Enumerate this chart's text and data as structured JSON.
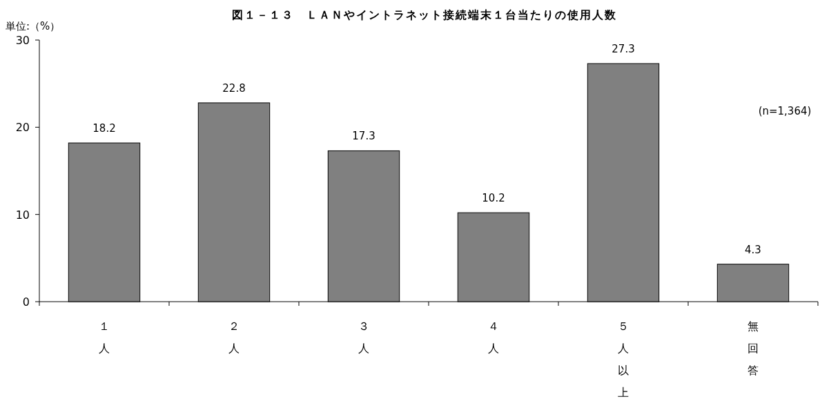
{
  "chart_data": {
    "type": "bar",
    "title": "図１－１３　ＬＡＮやイントラネット接続端末１台当たりの使用人数",
    "ylabel": "単位:（%）",
    "categories": [
      "１人",
      "２人",
      "３人",
      "４人",
      "５人以上",
      "無回答"
    ],
    "values": [
      18.2,
      22.8,
      17.3,
      10.2,
      27.3,
      4.3
    ],
    "color": "#808080",
    "ylim": [
      0,
      30
    ],
    "yticks": [
      0,
      10,
      20,
      30
    ],
    "data_labels": true,
    "annotations": [
      "(n=1,364)"
    ]
  }
}
